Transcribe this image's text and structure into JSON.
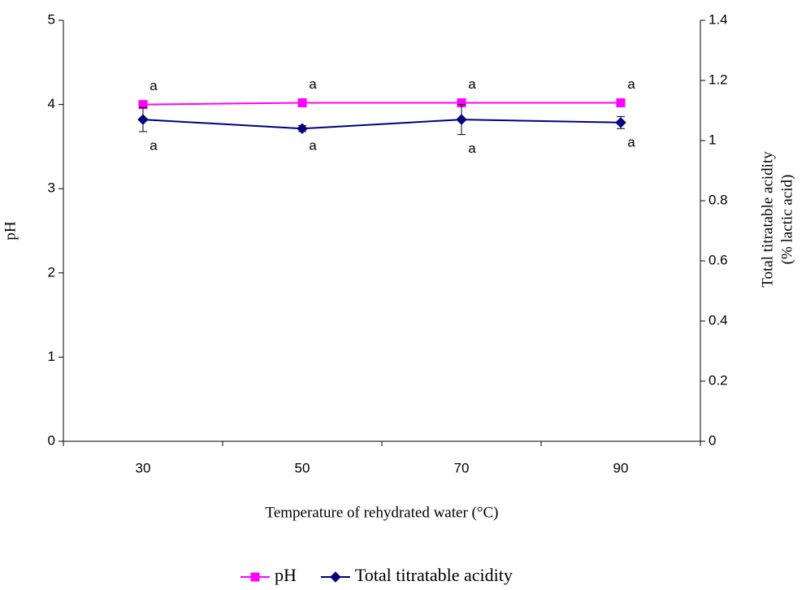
{
  "chart_data": {
    "type": "line",
    "categories": [
      "30",
      "50",
      "70",
      "90"
    ],
    "xlabel": "Temperature of rehydrated water (°C)",
    "ylabel": "pH",
    "y2label": [
      "Total titratable acidity",
      "(% lactic acid)"
    ],
    "ylim": [
      0,
      5
    ],
    "yticks": [
      0,
      1,
      2,
      3,
      4,
      5
    ],
    "y2lim": [
      0,
      1.4
    ],
    "y2ticks": [
      0,
      0.2,
      0.4,
      0.6,
      0.8,
      1,
      1.2,
      1.4
    ],
    "legend": "bottom",
    "series": [
      {
        "name": "pH",
        "color": "#ff00ff",
        "marker": "square",
        "values": [
          4.0,
          4.02,
          4.02,
          4.02
        ],
        "letters": [
          "a",
          "a",
          "a",
          "a"
        ]
      },
      {
        "name": "Total titratable acidity",
        "color": "#000080",
        "marker": "diamond",
        "axis": "y2",
        "values": [
          1.07,
          1.04,
          1.07,
          1.06
        ],
        "errors": [
          0.04,
          0.01,
          0.05,
          0.02
        ],
        "letters": [
          "a",
          "a",
          "a",
          "a"
        ]
      }
    ]
  }
}
